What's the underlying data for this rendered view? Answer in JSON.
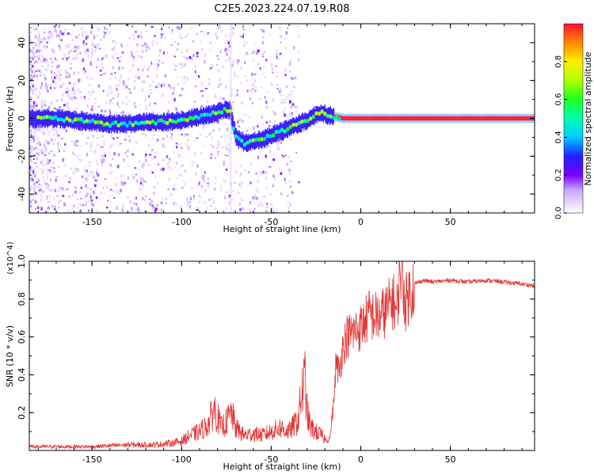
{
  "title": "C2E5.2023.224.07.19.R08",
  "chart_data": [
    {
      "type": "heatmap",
      "xlabel": "Height of straight line (km)",
      "ylabel": "Frequency (Hz)",
      "xlim": [
        -185,
        97
      ],
      "ylim": [
        -50,
        50
      ],
      "xticks": [
        -150,
        -100,
        -50,
        0,
        50
      ],
      "yticks": [
        -40,
        -20,
        0,
        20,
        40
      ],
      "colorbar": {
        "label": "Normalized spectral amplitude",
        "range": [
          0,
          1
        ],
        "ticks": [
          0.0,
          0.2,
          0.4,
          0.6,
          0.8
        ]
      },
      "ridge": {
        "x": [
          -185,
          -170,
          -160,
          -150,
          -140,
          -130,
          -120,
          -110,
          -100,
          -90,
          -80,
          -75,
          -73,
          -70,
          -65,
          -60,
          -55,
          -50,
          -45,
          -40,
          -35,
          -30,
          -25,
          -22,
          -20,
          -15,
          -10,
          -5,
          0,
          10,
          20,
          50,
          97
        ],
        "y": [
          0,
          0,
          -1,
          -2,
          -3,
          -3,
          -2,
          -2,
          -1,
          1,
          3,
          5,
          4,
          -10,
          -13,
          -12,
          -11,
          -9,
          -7,
          -5,
          -3,
          -1,
          2,
          3,
          2,
          1,
          0,
          0,
          0,
          0,
          0,
          0,
          0
        ]
      }
    },
    {
      "type": "line",
      "xlabel": "Height of straight line (km)",
      "ylabel": "SNR (10 * v/v)",
      "yscale_note": "(x10^4)",
      "xlim": [
        -185,
        97
      ],
      "ylim": [
        0,
        1.0
      ],
      "xticks": [
        -150,
        -100,
        -50,
        0,
        50
      ],
      "yticks": [
        0.2,
        0.4,
        0.6,
        0.8,
        1.0
      ],
      "series": [
        {
          "x": [
            -185,
            -170,
            -150,
            -130,
            -115,
            -105,
            -100,
            -95,
            -90,
            -85,
            -82,
            -80,
            -78,
            -75,
            -72,
            -70,
            -65,
            -60,
            -55,
            -50,
            -45,
            -40,
            -35,
            -33,
            -31,
            -30,
            -28,
            -25,
            -22,
            -20,
            -18,
            -17,
            -16,
            -15,
            -14,
            -12,
            -10,
            -8,
            -5,
            0,
            5,
            10,
            15,
            18,
            20,
            22,
            25,
            28,
            30,
            35,
            40,
            50,
            60,
            70,
            80,
            90,
            97
          ],
          "y": [
            0.02,
            0.02,
            0.02,
            0.03,
            0.03,
            0.04,
            0.05,
            0.08,
            0.1,
            0.14,
            0.22,
            0.18,
            0.12,
            0.15,
            0.2,
            0.12,
            0.08,
            0.09,
            0.08,
            0.1,
            0.12,
            0.1,
            0.16,
            0.3,
            0.38,
            0.2,
            0.12,
            0.1,
            0.08,
            0.06,
            0.05,
            0.08,
            0.18,
            0.25,
            0.45,
            0.42,
            0.55,
            0.6,
            0.62,
            0.65,
            0.72,
            0.7,
            0.75,
            0.8,
            0.72,
            0.98,
            0.78,
            0.85,
            0.88,
            0.9,
            0.89,
            0.9,
            0.89,
            0.9,
            0.89,
            0.88,
            0.87
          ],
          "color": "#e33535"
        }
      ]
    }
  ]
}
